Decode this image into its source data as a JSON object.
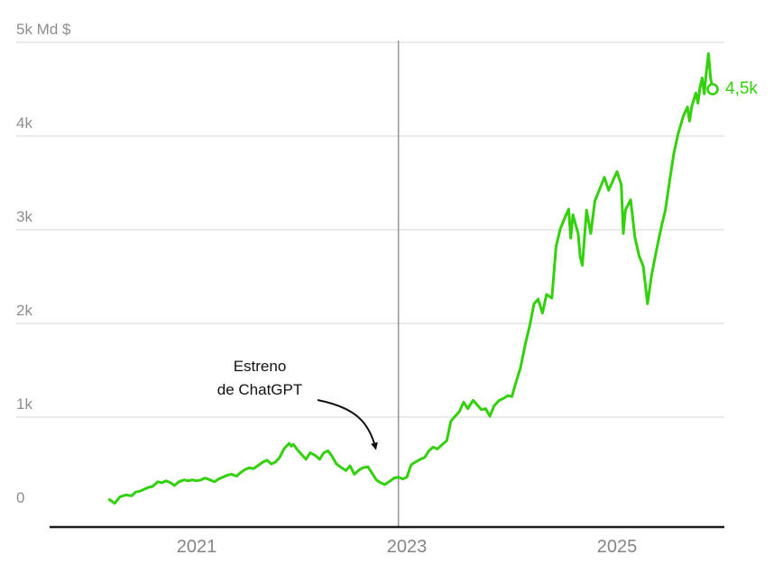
{
  "chart_data": {
    "type": "line",
    "unit": "Md $",
    "ylim": [
      0,
      5
    ],
    "xlim": [
      2020.1,
      2025.95
    ],
    "grid": true,
    "yticks": [
      {
        "value": 0,
        "label": "0"
      },
      {
        "value": 1,
        "label": "1k"
      },
      {
        "value": 2,
        "label": "2k"
      },
      {
        "value": 3,
        "label": "3k"
      },
      {
        "value": 4,
        "label": "4k"
      },
      {
        "value": 5,
        "label": "5k Md $"
      }
    ],
    "xticks": [
      {
        "year": 2021,
        "label": "2021"
      },
      {
        "year": 2023,
        "label": "2023"
      },
      {
        "year": 2025,
        "label": "2025"
      }
    ],
    "event": {
      "year": 2022.92,
      "line1": "Estreno",
      "line2": "de ChatGPT"
    },
    "end_marker": {
      "label": "4,5k",
      "value": 4.5
    },
    "points": [
      [
        2020.17,
        0.12
      ],
      [
        2020.22,
        0.08
      ],
      [
        2020.27,
        0.15
      ],
      [
        2020.33,
        0.17
      ],
      [
        2020.38,
        0.16
      ],
      [
        2020.42,
        0.2
      ],
      [
        2020.46,
        0.21
      ],
      [
        2020.5,
        0.23
      ],
      [
        2020.54,
        0.25
      ],
      [
        2020.58,
        0.26
      ],
      [
        2020.63,
        0.31
      ],
      [
        2020.67,
        0.3
      ],
      [
        2020.71,
        0.32
      ],
      [
        2020.75,
        0.3
      ],
      [
        2020.79,
        0.27
      ],
      [
        2020.83,
        0.31
      ],
      [
        2020.88,
        0.33
      ],
      [
        2020.92,
        0.32
      ],
      [
        2020.96,
        0.33
      ],
      [
        2021.0,
        0.32
      ],
      [
        2021.04,
        0.33
      ],
      [
        2021.08,
        0.35
      ],
      [
        2021.13,
        0.33
      ],
      [
        2021.17,
        0.31
      ],
      [
        2021.21,
        0.34
      ],
      [
        2021.25,
        0.36
      ],
      [
        2021.29,
        0.38
      ],
      [
        2021.33,
        0.39
      ],
      [
        2021.38,
        0.37
      ],
      [
        2021.42,
        0.41
      ],
      [
        2021.46,
        0.44
      ],
      [
        2021.5,
        0.46
      ],
      [
        2021.54,
        0.45
      ],
      [
        2021.58,
        0.48
      ],
      [
        2021.63,
        0.52
      ],
      [
        2021.67,
        0.54
      ],
      [
        2021.71,
        0.5
      ],
      [
        2021.75,
        0.52
      ],
      [
        2021.79,
        0.57
      ],
      [
        2021.83,
        0.66
      ],
      [
        2021.88,
        0.72
      ],
      [
        2021.9,
        0.69
      ],
      [
        2021.92,
        0.71
      ],
      [
        2021.96,
        0.65
      ],
      [
        2022.0,
        0.6
      ],
      [
        2022.04,
        0.55
      ],
      [
        2022.08,
        0.62
      ],
      [
        2022.13,
        0.59
      ],
      [
        2022.17,
        0.55
      ],
      [
        2022.21,
        0.62
      ],
      [
        2022.25,
        0.64
      ],
      [
        2022.29,
        0.58
      ],
      [
        2022.33,
        0.5
      ],
      [
        2022.38,
        0.46
      ],
      [
        2022.42,
        0.43
      ],
      [
        2022.46,
        0.48
      ],
      [
        2022.5,
        0.39
      ],
      [
        2022.54,
        0.43
      ],
      [
        2022.58,
        0.46
      ],
      [
        2022.63,
        0.47
      ],
      [
        2022.67,
        0.4
      ],
      [
        2022.71,
        0.33
      ],
      [
        2022.75,
        0.3
      ],
      [
        2022.79,
        0.28
      ],
      [
        2022.83,
        0.31
      ],
      [
        2022.88,
        0.35
      ],
      [
        2022.92,
        0.36
      ],
      [
        2022.96,
        0.34
      ],
      [
        2023.0,
        0.36
      ],
      [
        2023.04,
        0.49
      ],
      [
        2023.08,
        0.52
      ],
      [
        2023.13,
        0.55
      ],
      [
        2023.17,
        0.57
      ],
      [
        2023.21,
        0.64
      ],
      [
        2023.25,
        0.68
      ],
      [
        2023.29,
        0.66
      ],
      [
        2023.33,
        0.7
      ],
      [
        2023.38,
        0.75
      ],
      [
        2023.42,
        0.96
      ],
      [
        2023.46,
        1.01
      ],
      [
        2023.5,
        1.06
      ],
      [
        2023.54,
        1.16
      ],
      [
        2023.58,
        1.09
      ],
      [
        2023.63,
        1.18
      ],
      [
        2023.67,
        1.13
      ],
      [
        2023.71,
        1.08
      ],
      [
        2023.75,
        1.09
      ],
      [
        2023.79,
        1.01
      ],
      [
        2023.83,
        1.12
      ],
      [
        2023.88,
        1.18
      ],
      [
        2023.92,
        1.2
      ],
      [
        2023.96,
        1.23
      ],
      [
        2024.0,
        1.22
      ],
      [
        2024.04,
        1.38
      ],
      [
        2024.08,
        1.52
      ],
      [
        2024.13,
        1.79
      ],
      [
        2024.17,
        1.98
      ],
      [
        2024.21,
        2.21
      ],
      [
        2024.25,
        2.26
      ],
      [
        2024.29,
        2.11
      ],
      [
        2024.33,
        2.31
      ],
      [
        2024.38,
        2.27
      ],
      [
        2024.42,
        2.82
      ],
      [
        2024.46,
        3.01
      ],
      [
        2024.5,
        3.12
      ],
      [
        2024.54,
        3.22
      ],
      [
        2024.56,
        2.91
      ],
      [
        2024.58,
        3.16
      ],
      [
        2024.63,
        2.96
      ],
      [
        2024.65,
        2.71
      ],
      [
        2024.67,
        2.62
      ],
      [
        2024.71,
        3.21
      ],
      [
        2024.75,
        2.96
      ],
      [
        2024.79,
        3.31
      ],
      [
        2024.83,
        3.42
      ],
      [
        2024.88,
        3.56
      ],
      [
        2024.92,
        3.42
      ],
      [
        2024.96,
        3.52
      ],
      [
        2025.0,
        3.62
      ],
      [
        2025.04,
        3.48
      ],
      [
        2025.06,
        2.96
      ],
      [
        2025.08,
        3.21
      ],
      [
        2025.13,
        3.32
      ],
      [
        2025.17,
        2.92
      ],
      [
        2025.21,
        2.72
      ],
      [
        2025.25,
        2.61
      ],
      [
        2025.29,
        2.21
      ],
      [
        2025.33,
        2.52
      ],
      [
        2025.38,
        2.81
      ],
      [
        2025.42,
        3.02
      ],
      [
        2025.46,
        3.21
      ],
      [
        2025.5,
        3.52
      ],
      [
        2025.54,
        3.81
      ],
      [
        2025.58,
        4.02
      ],
      [
        2025.63,
        4.21
      ],
      [
        2025.67,
        4.31
      ],
      [
        2025.69,
        4.16
      ],
      [
        2025.71,
        4.31
      ],
      [
        2025.75,
        4.46
      ],
      [
        2025.77,
        4.35
      ],
      [
        2025.79,
        4.52
      ],
      [
        2025.81,
        4.62
      ],
      [
        2025.83,
        4.45
      ],
      [
        2025.85,
        4.68
      ],
      [
        2025.87,
        4.88
      ],
      [
        2025.89,
        4.62
      ],
      [
        2025.91,
        4.5
      ]
    ],
    "colors": {
      "line": "#33d00c",
      "grid": "#dcdcdc",
      "event_line": "#9a9a9a",
      "axis": "#1a1a1a",
      "tick_text_y": "#8e8e8e",
      "tick_text_x": "#858585",
      "annotation_text": "#111111"
    }
  }
}
